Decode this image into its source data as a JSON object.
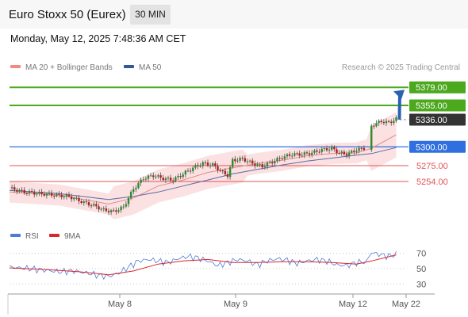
{
  "header": {
    "title": "Euro Stoxx 50 (Eurex)",
    "timeframe": "30 MIN",
    "datetime": "Monday, May 12, 2025 7:48:36 AM CET"
  },
  "legend": {
    "ma20_label": "MA 20 + Bollinger Bands",
    "ma50_label": "MA 50",
    "copyright": "Research © 2025 Trading Central"
  },
  "rsi_legend": {
    "rsi_label": "RSI",
    "ma_label": "9MA"
  },
  "colors": {
    "resistance": "#4ca81d",
    "pivot": "#2f6fe0",
    "support": "#e0545a",
    "current": "#333333",
    "ma20_band": "#f7c9c9",
    "ma50": "#5a6aa6",
    "arrow": "#2a62b0",
    "rsi": "#4f7bd8",
    "rsi_ma": "#d9262c"
  },
  "chart_data": [
    {
      "type": "candlestick",
      "title": "Euro Stoxx 50 (Eurex)",
      "timeframe": "30 MIN",
      "x_tick_labels": [
        "May 8",
        "May 9",
        "May 12",
        "May 22"
      ],
      "ylim": [
        5195,
        5395
      ],
      "levels": [
        {
          "label": "5379.00",
          "value": 5379,
          "role": "resistance"
        },
        {
          "label": "5355.00",
          "value": 5355,
          "role": "resistance"
        },
        {
          "label": "5336.00",
          "value": 5336,
          "role": "current"
        },
        {
          "label": "5300.00",
          "value": 5300,
          "role": "pivot"
        },
        {
          "label": "5275.00",
          "value": 5275,
          "role": "support"
        },
        {
          "label": "5254.00",
          "value": 5254,
          "role": "support"
        }
      ],
      "price_path": [
        [
          0,
          5245
        ],
        [
          6,
          5240
        ],
        [
          12,
          5238
        ],
        [
          18,
          5236
        ],
        [
          24,
          5234
        ],
        [
          30,
          5226
        ],
        [
          34,
          5222
        ],
        [
          38,
          5216
        ],
        [
          42,
          5214
        ],
        [
          46,
          5220
        ],
        [
          50,
          5244
        ],
        [
          54,
          5258
        ],
        [
          58,
          5262
        ],
        [
          62,
          5258
        ],
        [
          66,
          5256
        ],
        [
          70,
          5264
        ],
        [
          74,
          5272
        ],
        [
          78,
          5278
        ],
        [
          82,
          5276
        ],
        [
          86,
          5266
        ],
        [
          88,
          5262
        ],
        [
          90,
          5282
        ],
        [
          94,
          5284
        ],
        [
          98,
          5278
        ],
        [
          102,
          5274
        ],
        [
          106,
          5280
        ],
        [
          110,
          5286
        ],
        [
          114,
          5290
        ],
        [
          118,
          5290
        ],
        [
          122,
          5292
        ],
        [
          126,
          5296
        ],
        [
          130,
          5298
        ],
        [
          133,
          5292
        ],
        [
          136,
          5290
        ],
        [
          140,
          5296
        ],
        [
          143,
          5298
        ],
        [
          146,
          5328
        ],
        [
          150,
          5334
        ],
        [
          153,
          5332
        ],
        [
          156,
          5337
        ]
      ],
      "series": [
        {
          "name": "MA 20 + Bollinger Bands",
          "values": [
            [
              0,
              5240
            ],
            [
              20,
              5236
            ],
            [
              40,
              5224
            ],
            [
              50,
              5232
            ],
            [
              60,
              5248
            ],
            [
              70,
              5256
            ],
            [
              80,
              5266
            ],
            [
              90,
              5272
            ],
            [
              100,
              5278
            ],
            [
              110,
              5282
            ],
            [
              120,
              5288
            ],
            [
              130,
              5291
            ],
            [
              140,
              5292
            ],
            [
              146,
              5298
            ],
            [
              156,
              5316
            ]
          ]
        },
        {
          "name": "MA 50",
          "values": [
            [
              0,
              5242
            ],
            [
              20,
              5238
            ],
            [
              40,
              5230
            ],
            [
              50,
              5234
            ],
            [
              60,
              5240
            ],
            [
              70,
              5248
            ],
            [
              80,
              5256
            ],
            [
              90,
              5264
            ],
            [
              100,
              5270
            ],
            [
              110,
              5276
            ],
            [
              120,
              5281
            ],
            [
              130,
              5285
            ],
            [
              140,
              5289
            ],
            [
              146,
              5291
            ],
            [
              156,
              5299
            ]
          ]
        }
      ],
      "projection": {
        "from": 5336,
        "to": 5379
      }
    },
    {
      "type": "line",
      "title": "RSI",
      "ylim": [
        20,
        80
      ],
      "y_ticks": [
        70,
        50,
        30
      ],
      "series": [
        {
          "name": "RSI",
          "values": [
            [
              0,
              52
            ],
            [
              8,
              50
            ],
            [
              14,
              48
            ],
            [
              20,
              46
            ],
            [
              26,
              47
            ],
            [
              32,
              44
            ],
            [
              36,
              41
            ],
            [
              40,
              40
            ],
            [
              44,
              44
            ],
            [
              48,
              52
            ],
            [
              52,
              60
            ],
            [
              56,
              62
            ],
            [
              60,
              60
            ],
            [
              64,
              58
            ],
            [
              68,
              63
            ],
            [
              72,
              66
            ],
            [
              76,
              64
            ],
            [
              80,
              60
            ],
            [
              84,
              54
            ],
            [
              88,
              58
            ],
            [
              92,
              62
            ],
            [
              96,
              60
            ],
            [
              100,
              55
            ],
            [
              104,
              60
            ],
            [
              108,
              63
            ],
            [
              112,
              61
            ],
            [
              116,
              57
            ],
            [
              120,
              60
            ],
            [
              124,
              62
            ],
            [
              128,
              60
            ],
            [
              132,
              55
            ],
            [
              136,
              54
            ],
            [
              140,
              58
            ],
            [
              144,
              59
            ],
            [
              146,
              71
            ],
            [
              150,
              68
            ],
            [
              153,
              66
            ],
            [
              156,
              69
            ]
          ]
        },
        {
          "name": "9MA",
          "values": [
            [
              0,
              51
            ],
            [
              14,
              49
            ],
            [
              28,
              46
            ],
            [
              40,
              42
            ],
            [
              50,
              47
            ],
            [
              60,
              56
            ],
            [
              70,
              60
            ],
            [
              80,
              62
            ],
            [
              90,
              58
            ],
            [
              100,
              58
            ],
            [
              110,
              59
            ],
            [
              120,
              59
            ],
            [
              130,
              58
            ],
            [
              140,
              56
            ],
            [
              146,
              60
            ],
            [
              156,
              68
            ]
          ]
        }
      ]
    }
  ]
}
